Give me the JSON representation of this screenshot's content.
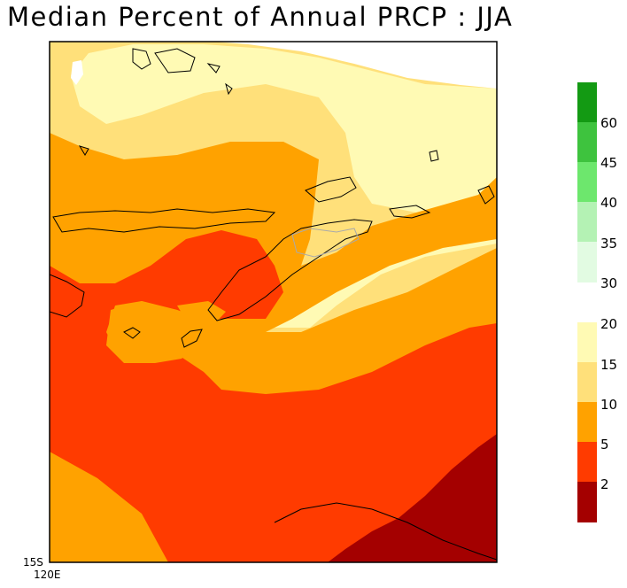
{
  "title": "Median Percent of Annual PRCP  :  JJA",
  "axes": {
    "lat_label": "15S",
    "lon_label": "120E"
  },
  "legend_upper": {
    "colors": [
      "#139a13",
      "#3ec33e",
      "#6de76d",
      "#b4f2b4",
      "#e2fbe2"
    ],
    "labels": [
      "60",
      "45",
      "40",
      "35",
      "30"
    ]
  },
  "legend_lower": {
    "colors": [
      "#fffab4",
      "#ffe07a",
      "#ffa200",
      "#ff3b00",
      "#a40000"
    ],
    "labels": [
      "20",
      "15",
      "10",
      "5",
      "2"
    ]
  }
}
